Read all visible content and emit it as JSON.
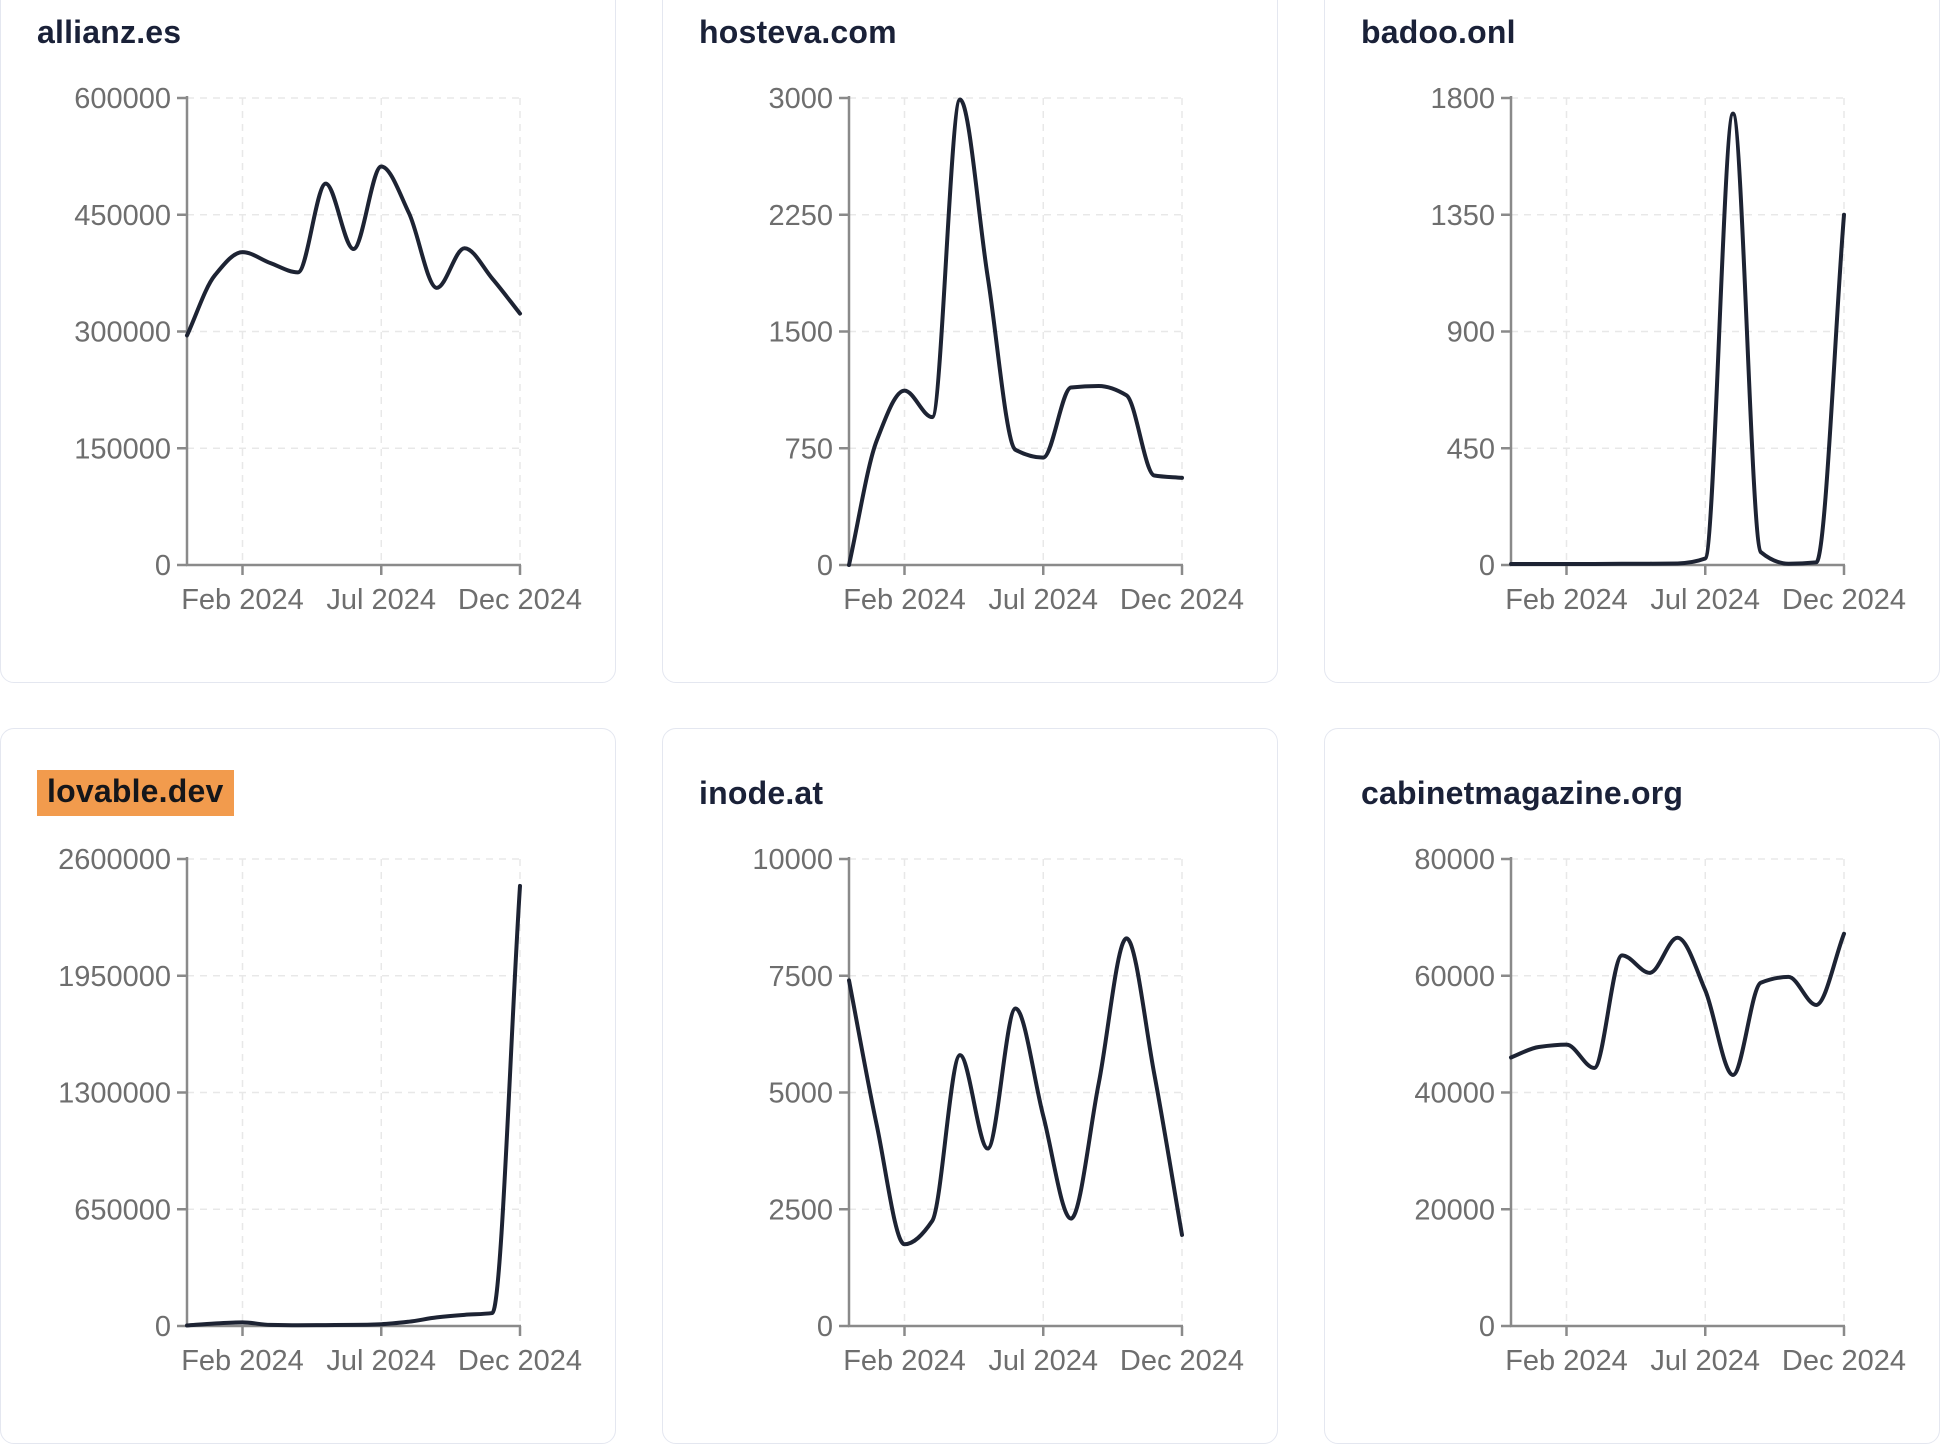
{
  "page": {
    "background": "#ffffff",
    "card_background": "#ffffff",
    "card_border_color": "#e4e7f0"
  },
  "style": {
    "line_color": "#1d2333",
    "axis_color": "#8a8a8a",
    "tick_label_color": "#6e6e6e",
    "grid_color": "#e8e8e8",
    "title_color": "#1a2138",
    "highlight_color": "#f29b4d",
    "highlight_text_color": "#15161a"
  },
  "chart_data": [
    {
      "type": "line",
      "title": "allianz.es",
      "highlighted": false,
      "x": [
        "Dec 2023",
        "Jan 2024",
        "Feb 2024",
        "Mar 2024",
        "Apr 2024",
        "May 2024",
        "Jun 2024",
        "Jul 2024",
        "Aug 2024",
        "Sep 2024",
        "Oct 2024",
        "Nov 2024",
        "Dec 2024"
      ],
      "values": [
        295000,
        372000,
        402000,
        388000,
        376000,
        490000,
        406000,
        512000,
        452000,
        356000,
        407000,
        368000,
        323000
      ],
      "y_ticks": [
        0,
        150000,
        300000,
        450000,
        600000
      ],
      "ylim": [
        0,
        600000
      ],
      "x_tick_labels": [
        "Feb 2024",
        "Jul 2024",
        "Dec 2024"
      ],
      "x_tick_positions": [
        2,
        7,
        12
      ],
      "grid": "dashed",
      "legend": "none"
    },
    {
      "type": "line",
      "title": "hosteva.com",
      "highlighted": false,
      "x": [
        "Dec 2023",
        "Jan 2024",
        "Feb 2024",
        "Mar 2024",
        "Apr 2024",
        "May 2024",
        "Jun 2024",
        "Jul 2024",
        "Aug 2024",
        "Sep 2024",
        "Oct 2024",
        "Nov 2024",
        "Dec 2024"
      ],
      "values": [
        0,
        800,
        1120,
        950,
        2990,
        1850,
        740,
        690,
        1140,
        1150,
        1090,
        575,
        560
      ],
      "y_ticks": [
        0,
        750,
        1500,
        2250,
        3000
      ],
      "ylim": [
        0,
        3000
      ],
      "x_tick_labels": [
        "Feb 2024",
        "Jul 2024",
        "Dec 2024"
      ],
      "x_tick_positions": [
        2,
        7,
        12
      ],
      "grid": "dashed",
      "legend": "none"
    },
    {
      "type": "line",
      "title": "badoo.onl",
      "highlighted": false,
      "x": [
        "Dec 2023",
        "Jan 2024",
        "Feb 2024",
        "Mar 2024",
        "Apr 2024",
        "May 2024",
        "Jun 2024",
        "Jul 2024",
        "Aug 2024",
        "Sep 2024",
        "Oct 2024",
        "Nov 2024",
        "Dec 2024"
      ],
      "values": [
        4,
        4,
        4,
        4,
        5,
        5,
        6,
        25,
        1740,
        50,
        5,
        10,
        1350
      ],
      "y_ticks": [
        0,
        450,
        900,
        1350,
        1800
      ],
      "ylim": [
        0,
        1800
      ],
      "x_tick_labels": [
        "Feb 2024",
        "Jul 2024",
        "Dec 2024"
      ],
      "x_tick_positions": [
        2,
        7,
        12
      ],
      "grid": "dashed",
      "legend": "none"
    },
    {
      "type": "line",
      "title": "lovable.dev",
      "highlighted": true,
      "x": [
        "Dec 2023",
        "Jan 2024",
        "Feb 2024",
        "Mar 2024",
        "Apr 2024",
        "May 2024",
        "Jun 2024",
        "Jul 2024",
        "Aug 2024",
        "Sep 2024",
        "Oct 2024",
        "Nov 2024",
        "Dec 2024"
      ],
      "values": [
        3000,
        14000,
        20000,
        6000,
        4000,
        5000,
        6000,
        10000,
        24000,
        48000,
        62000,
        72000,
        2450000
      ],
      "y_ticks": [
        0,
        650000,
        1300000,
        1950000,
        2600000
      ],
      "ylim": [
        0,
        2600000
      ],
      "x_tick_labels": [
        "Feb 2024",
        "Jul 2024",
        "Dec 2024"
      ],
      "x_tick_positions": [
        2,
        7,
        12
      ],
      "grid": "dashed",
      "legend": "none"
    },
    {
      "type": "line",
      "title": "inode.at",
      "highlighted": false,
      "x": [
        "Dec 2023",
        "Jan 2024",
        "Feb 2024",
        "Mar 2024",
        "Apr 2024",
        "May 2024",
        "Jun 2024",
        "Jul 2024",
        "Aug 2024",
        "Sep 2024",
        "Oct 2024",
        "Nov 2024",
        "Dec 2024"
      ],
      "values": [
        7400,
        4300,
        1750,
        2250,
        5800,
        3800,
        6800,
        4500,
        2300,
        5200,
        8300,
        5400,
        1950
      ],
      "y_ticks": [
        0,
        2500,
        5000,
        7500,
        10000
      ],
      "ylim": [
        0,
        10000
      ],
      "x_tick_labels": [
        "Feb 2024",
        "Jul 2024",
        "Dec 2024"
      ],
      "x_tick_positions": [
        2,
        7,
        12
      ],
      "grid": "dashed",
      "legend": "none"
    },
    {
      "type": "line",
      "title": "cabinetmagazine.org",
      "highlighted": false,
      "x": [
        "Dec 2023",
        "Jan 2024",
        "Feb 2024",
        "Mar 2024",
        "Apr 2024",
        "May 2024",
        "Jun 2024",
        "Jul 2024",
        "Aug 2024",
        "Sep 2024",
        "Oct 2024",
        "Nov 2024",
        "Dec 2024"
      ],
      "values": [
        46000,
        47800,
        48200,
        44200,
        63500,
        60500,
        66500,
        57500,
        43000,
        58800,
        59800,
        55000,
        67200
      ],
      "y_ticks": [
        0,
        20000,
        40000,
        60000,
        80000
      ],
      "ylim": [
        0,
        80000
      ],
      "x_tick_labels": [
        "Feb 2024",
        "Jul 2024",
        "Dec 2024"
      ],
      "x_tick_positions": [
        2,
        7,
        12
      ],
      "grid": "dashed",
      "legend": "none"
    }
  ]
}
